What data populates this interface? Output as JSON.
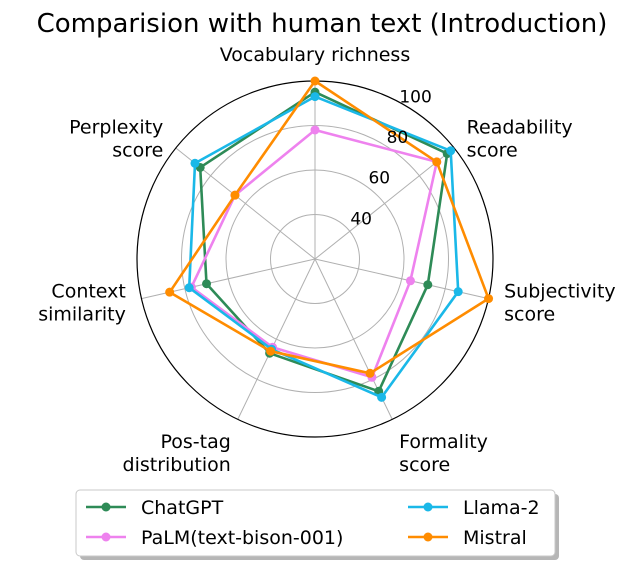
{
  "chart_data": {
    "type": "radar",
    "title": "Comparision with human text (Introduction)",
    "axes": [
      {
        "lines": [
          "Vocabulary richness"
        ]
      },
      {
        "lines": [
          "Readability",
          "score"
        ]
      },
      {
        "lines": [
          "Subjectivity",
          "score"
        ]
      },
      {
        "lines": [
          "Formality",
          "score"
        ]
      },
      {
        "lines": [
          "Pos-tag",
          "distribution"
        ]
      },
      {
        "lines": [
          "Context",
          "similarity"
        ]
      },
      {
        "lines": [
          "Perplexity",
          "score"
        ]
      }
    ],
    "rlim": [
      20,
      100
    ],
    "ticks": [
      "40",
      "60",
      "80",
      "100"
    ],
    "tick_values": [
      40,
      60,
      80,
      100
    ],
    "grid": true,
    "legend_position": "bottom-center",
    "series": [
      {
        "name": "ChatGPT",
        "color": "#2e8b57",
        "values": [
          95,
          96,
          72,
          86,
          67,
          70,
          86
        ]
      },
      {
        "name": "PaLM(text-bison-001)",
        "color": "#ee82ee",
        "values": [
          78,
          90,
          64,
          79,
          64,
          77,
          66
        ]
      },
      {
        "name": "Llama-2",
        "color": "#1ab8e8",
        "values": [
          93,
          98,
          86,
          89,
          65,
          78,
          89
        ]
      },
      {
        "name": "Mistral",
        "color": "#ff8c00",
        "values": [
          100,
          90,
          100,
          77,
          66,
          87,
          66
        ]
      }
    ]
  }
}
